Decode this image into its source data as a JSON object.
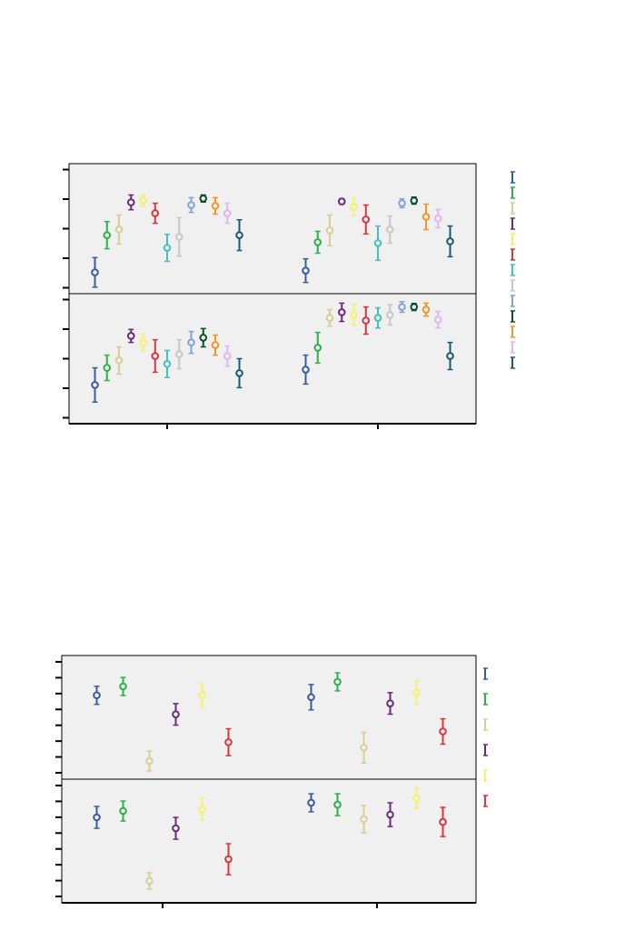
{
  "chart_data": [
    {
      "type": "errorbar",
      "categories": [
        null,
        null
      ],
      "ylim": [
        -0.2,
        4.2
      ],
      "yticks": [
        0,
        1,
        2,
        3,
        4
      ],
      "series": [
        {
          "color": "#3a5ba0",
          "values": [
            0.52,
            0.58
          ],
          "errors": [
            0.5,
            0.4
          ]
        },
        {
          "color": "#2eb04e",
          "values": [
            1.78,
            1.54
          ],
          "errors": [
            0.46,
            0.37
          ]
        },
        {
          "color": "#d8cf94",
          "values": [
            1.97,
            1.94
          ],
          "errors": [
            0.49,
            0.52
          ]
        },
        {
          "color": "#6a2c7a",
          "values": [
            2.89,
            2.92
          ],
          "errors": [
            0.25,
            0.09
          ]
        },
        {
          "color": "#f5f26a",
          "values": [
            2.95,
            2.74
          ],
          "errors": [
            0.18,
            0.28
          ]
        },
        {
          "color": "#d9363e",
          "values": [
            2.52,
            2.31
          ],
          "errors": [
            0.34,
            0.49
          ]
        },
        {
          "color": "#46bfc4",
          "values": [
            1.35,
            1.51
          ],
          "errors": [
            0.46,
            0.58
          ]
        },
        {
          "color": "#c8c8c8",
          "values": [
            1.72,
            1.97
          ],
          "errors": [
            0.65,
            0.46
          ]
        },
        {
          "color": "#7ea6d8",
          "values": [
            2.8,
            2.86
          ],
          "errors": [
            0.25,
            0.15
          ]
        },
        {
          "color": "#0b4f2a",
          "values": [
            3.02,
            2.95
          ],
          "errors": [
            0.12,
            0.12
          ]
        },
        {
          "color": "#f0982a",
          "values": [
            2.77,
            2.4
          ],
          "errors": [
            0.28,
            0.43
          ]
        },
        {
          "color": "#e1b6ee",
          "values": [
            2.52,
            2.34
          ],
          "errors": [
            0.34,
            0.31
          ]
        },
        {
          "color": "#1b5a74",
          "values": [
            1.78,
            1.57
          ],
          "errors": [
            0.52,
            0.52
          ]
        }
      ]
    },
    {
      "type": "errorbar",
      "categories": [
        null,
        null
      ],
      "ylim": [
        -0.2,
        4.2
      ],
      "yticks": [
        0,
        1,
        2,
        3,
        4
      ],
      "series": [
        {
          "color": "#3a5ba0",
          "values": [
            1.11,
            1.63
          ],
          "errors": [
            0.58,
            0.49
          ]
        },
        {
          "color": "#2eb04e",
          "values": [
            1.69,
            2.37
          ],
          "errors": [
            0.43,
            0.52
          ]
        },
        {
          "color": "#d8cf94",
          "values": [
            1.94,
            3.38
          ],
          "errors": [
            0.46,
            0.28
          ]
        },
        {
          "color": "#6a2c7a",
          "values": [
            2.77,
            3.57
          ],
          "errors": [
            0.22,
            0.31
          ]
        },
        {
          "color": "#f5f26a",
          "values": [
            2.55,
            3.48
          ],
          "errors": [
            0.28,
            0.34
          ]
        },
        {
          "color": "#d9363e",
          "values": [
            2.09,
            3.29
          ],
          "errors": [
            0.55,
            0.46
          ]
        },
        {
          "color": "#46bfc4",
          "values": [
            1.82,
            3.38
          ],
          "errors": [
            0.46,
            0.34
          ]
        },
        {
          "color": "#c8c8c8",
          "values": [
            2.15,
            3.48
          ],
          "errors": [
            0.49,
            0.34
          ]
        },
        {
          "color": "#7ea6d8",
          "values": [
            2.55,
            3.75
          ],
          "errors": [
            0.37,
            0.18
          ]
        },
        {
          "color": "#0b4f2a",
          "values": [
            2.71,
            3.75
          ],
          "errors": [
            0.31,
            0.12
          ]
        },
        {
          "color": "#f0982a",
          "values": [
            2.46,
            3.66
          ],
          "errors": [
            0.34,
            0.22
          ]
        },
        {
          "color": "#e1b6ee",
          "values": [
            2.09,
            3.32
          ],
          "errors": [
            0.34,
            0.28
          ]
        },
        {
          "color": "#1b5a74",
          "values": [
            1.51,
            2.09
          ],
          "errors": [
            0.49,
            0.46
          ]
        }
      ]
    },
    {
      "type": "errorbar",
      "categories": [
        null,
        null
      ],
      "ylim": [
        -0.4,
        7.4
      ],
      "yticks": [
        0,
        1,
        2,
        3,
        4,
        5,
        6,
        7
      ],
      "series": [
        {
          "color": "#3a5ba0",
          "values": [
            4.89,
            4.77
          ],
          "errors": [
            0.57,
            0.8
          ]
        },
        {
          "color": "#2eb04e",
          "values": [
            5.45,
            5.74
          ],
          "errors": [
            0.57,
            0.57
          ]
        },
        {
          "color": "#d8cf94",
          "values": [
            0.74,
            1.59
          ],
          "errors": [
            0.63,
            0.97
          ]
        },
        {
          "color": "#6a2c7a",
          "values": [
            3.69,
            4.38
          ],
          "errors": [
            0.68,
            0.68
          ]
        },
        {
          "color": "#f5f26a",
          "values": [
            4.89,
            5.06
          ],
          "errors": [
            0.74,
            0.74
          ]
        },
        {
          "color": "#d9363e",
          "values": [
            1.93,
            2.61
          ],
          "errors": [
            0.85,
            0.8
          ]
        }
      ]
    },
    {
      "type": "errorbar",
      "categories": [
        null,
        null
      ],
      "ylim": [
        -0.4,
        7.4
      ],
      "yticks": [
        0,
        1,
        2,
        3,
        4,
        5,
        6,
        7
      ],
      "series": [
        {
          "color": "#3a5ba0",
          "values": [
            4.99,
            5.91
          ],
          "errors": [
            0.69,
            0.57
          ]
        },
        {
          "color": "#2eb04e",
          "values": [
            5.39,
            5.79
          ],
          "errors": [
            0.63,
            0.69
          ]
        },
        {
          "color": "#d8cf94",
          "values": [
            0.98,
            4.88
          ],
          "errors": [
            0.52,
            0.86
          ]
        },
        {
          "color": "#6a2c7a",
          "values": [
            4.3,
            5.16
          ],
          "errors": [
            0.69,
            0.75
          ]
        },
        {
          "color": "#f5f26a",
          "values": [
            5.51,
            6.2
          ],
          "errors": [
            0.69,
            0.63
          ]
        },
        {
          "color": "#d9363e",
          "values": [
            2.35,
            4.7
          ],
          "errors": [
            0.98,
            0.92
          ]
        }
      ]
    }
  ]
}
